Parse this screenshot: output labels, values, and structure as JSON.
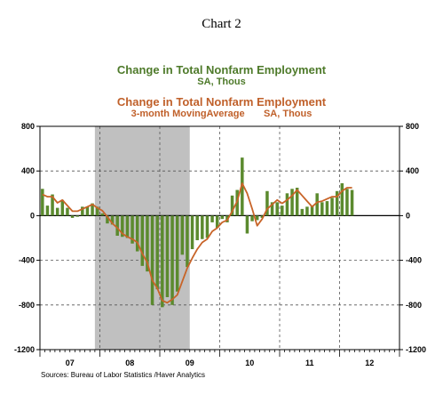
{
  "heading": "Chart 2",
  "source": "Sources: Bureau of Labor Statistics /Haver Analytics",
  "colors": {
    "bar": "#5b8a2e",
    "line": "#c86428",
    "recession": "#c0c0c0",
    "grid": "#555555"
  },
  "chart_data": {
    "type": "bar",
    "title": "Change in Total Nonfarm Employment",
    "subtitle": "SA, Thous",
    "xlabel": "",
    "ylabel": "",
    "ylim": [
      -1200,
      800
    ],
    "yticks": [
      800,
      400,
      0,
      -400,
      -800,
      -1200
    ],
    "x_start": "2007-01",
    "x_end": "2012-12",
    "x_tick_labels": [
      "07",
      "08",
      "09",
      "10",
      "11",
      "12"
    ],
    "grid": "dashed",
    "legend_position": "top-center",
    "recession_shading": {
      "start": "2007-12",
      "end": "2009-06"
    },
    "series": [
      {
        "name": "Change in Total Nonfarm Employment",
        "units": "SA, Thous",
        "type": "bar",
        "x": [
          "2007-01",
          "2007-02",
          "2007-03",
          "2007-04",
          "2007-05",
          "2007-06",
          "2007-07",
          "2007-08",
          "2007-09",
          "2007-10",
          "2007-11",
          "2007-12",
          "2008-01",
          "2008-02",
          "2008-03",
          "2008-04",
          "2008-05",
          "2008-06",
          "2008-07",
          "2008-08",
          "2008-09",
          "2008-10",
          "2008-11",
          "2008-12",
          "2009-01",
          "2009-02",
          "2009-03",
          "2009-04",
          "2009-05",
          "2009-06",
          "2009-07",
          "2009-08",
          "2009-09",
          "2009-10",
          "2009-11",
          "2009-12",
          "2010-01",
          "2010-02",
          "2010-03",
          "2010-04",
          "2010-05",
          "2010-06",
          "2010-07",
          "2010-08",
          "2010-09",
          "2010-10",
          "2010-11",
          "2010-12",
          "2011-01",
          "2011-02",
          "2011-03",
          "2011-04",
          "2011-05",
          "2011-06",
          "2011-07",
          "2011-08",
          "2011-09",
          "2011-10",
          "2011-11",
          "2011-12",
          "2012-01",
          "2012-02",
          "2012-03"
        ],
        "values": [
          240,
          90,
          190,
          70,
          140,
          70,
          -20,
          -10,
          80,
          80,
          110,
          80,
          20,
          -70,
          -80,
          -180,
          -190,
          -200,
          -250,
          -320,
          -450,
          -500,
          -800,
          -660,
          -820,
          -730,
          -800,
          -680,
          -350,
          -460,
          -300,
          -220,
          -210,
          -200,
          -60,
          -110,
          -30,
          -60,
          180,
          230,
          520,
          -160,
          -50,
          -40,
          -20,
          220,
          120,
          120,
          90,
          200,
          240,
          250,
          60,
          80,
          90,
          200,
          120,
          130,
          160,
          220,
          290,
          240,
          230
        ]
      },
      {
        "name": "Change in Total Nonfarm Employment",
        "units": "3-month MovingAverage SA, Thous",
        "type": "line",
        "x": [
          "2007-01",
          "2007-02",
          "2007-03",
          "2007-04",
          "2007-05",
          "2007-06",
          "2007-07",
          "2007-08",
          "2007-09",
          "2007-10",
          "2007-11",
          "2007-12",
          "2008-01",
          "2008-02",
          "2008-03",
          "2008-04",
          "2008-05",
          "2008-06",
          "2008-07",
          "2008-08",
          "2008-09",
          "2008-10",
          "2008-11",
          "2008-12",
          "2009-01",
          "2009-02",
          "2009-03",
          "2009-04",
          "2009-05",
          "2009-06",
          "2009-07",
          "2009-08",
          "2009-09",
          "2009-10",
          "2009-11",
          "2009-12",
          "2010-01",
          "2010-02",
          "2010-03",
          "2010-04",
          "2010-05",
          "2010-06",
          "2010-07",
          "2010-08",
          "2010-09",
          "2010-10",
          "2010-11",
          "2010-12",
          "2011-01",
          "2011-02",
          "2011-03",
          "2011-04",
          "2011-05",
          "2011-06",
          "2011-07",
          "2011-08",
          "2011-09",
          "2011-10",
          "2011-11",
          "2011-12",
          "2012-01",
          "2012-02",
          "2012-03"
        ],
        "values": [
          190,
          170,
          170,
          115,
          140,
          90,
          40,
          40,
          60,
          80,
          100,
          70,
          45,
          -10,
          -70,
          -110,
          -160,
          -190,
          -210,
          -240,
          -340,
          -420,
          -580,
          -650,
          -760,
          -780,
          -750,
          -710,
          -590,
          -470,
          -380,
          -300,
          -240,
          -210,
          -140,
          -110,
          -60,
          -40,
          40,
          130,
          290,
          200,
          60,
          -90,
          -30,
          60,
          100,
          140,
          110,
          140,
          180,
          230,
          180,
          130,
          80,
          120,
          130,
          150,
          170,
          170,
          220,
          250,
          250
        ]
      }
    ]
  },
  "legend": [
    {
      "title": "Change in Total Nonfarm Employment",
      "sub": "SA, Thous"
    },
    {
      "title": "Change in Total Nonfarm Employment",
      "sub": "3-month MovingAverage       SA, Thous"
    }
  ]
}
